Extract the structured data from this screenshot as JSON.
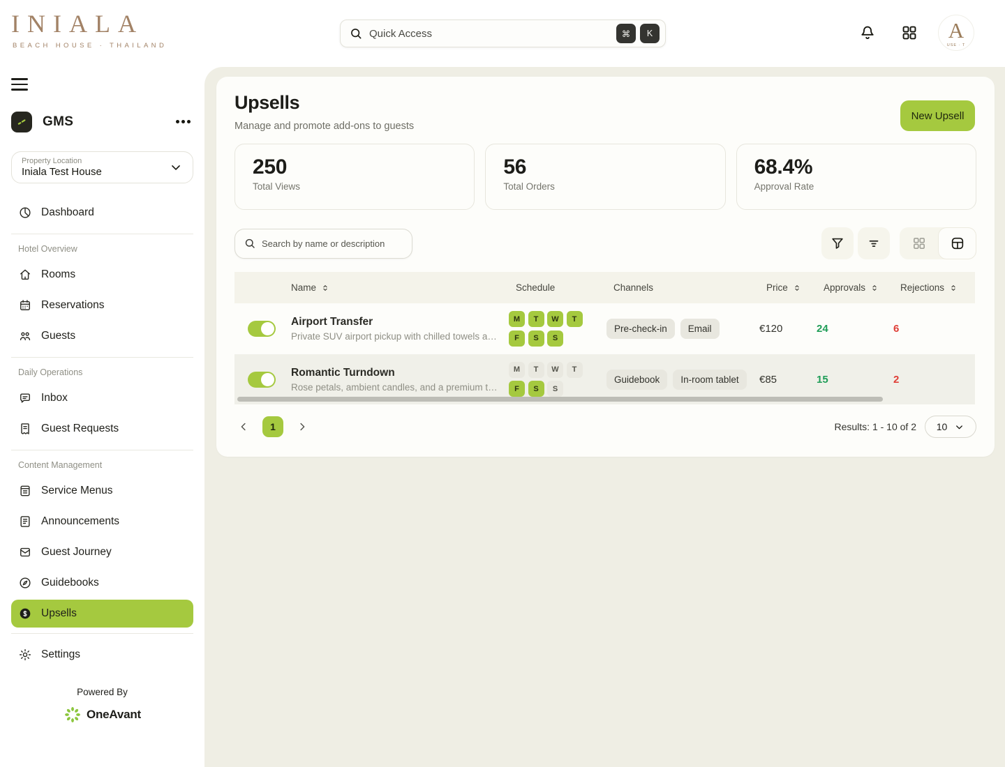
{
  "colors": {
    "accent_green": "#a5c93f",
    "logo_brown": "#a28266",
    "approvals_green": "#1f9d57",
    "rejections_red": "#df3e36",
    "panel_beige": "#efeee4"
  },
  "header": {
    "logo": {
      "title": "INIALA",
      "subtitle": "BEACH HOUSE · THAILAND"
    },
    "search": {
      "placeholder": "Quick Access",
      "shortcut_keys": [
        "⌘",
        "K"
      ]
    },
    "avatar": {
      "letter": "A",
      "subtext": "USE · T"
    }
  },
  "sidebar": {
    "workspace": {
      "name": "GMS"
    },
    "property_selector": {
      "label": "Property Location",
      "value": "Iniala Test House"
    },
    "sections": [
      {
        "label": "",
        "divider_after": true,
        "items": [
          {
            "label": "Dashboard",
            "icon": "dashboard-icon",
            "active": false
          }
        ]
      },
      {
        "label": "Hotel Overview",
        "divider_after": true,
        "items": [
          {
            "label": "Rooms",
            "icon": "rooms-icon",
            "active": false
          },
          {
            "label": "Reservations",
            "icon": "reservations-icon",
            "active": false
          },
          {
            "label": "Guests",
            "icon": "guests-icon",
            "active": false
          }
        ]
      },
      {
        "label": "Daily Operations",
        "divider_after": true,
        "items": [
          {
            "label": "Inbox",
            "icon": "inbox-icon",
            "active": false
          },
          {
            "label": "Guest Requests",
            "icon": "guest-requests-icon",
            "active": false
          }
        ]
      },
      {
        "label": "Content Management",
        "divider_after": true,
        "items": [
          {
            "label": "Service Menus",
            "icon": "service-menus-icon",
            "active": false
          },
          {
            "label": "Announcements",
            "icon": "announcements-icon",
            "active": false
          },
          {
            "label": "Guest Journey",
            "icon": "guest-journey-icon",
            "active": false
          },
          {
            "label": "Guidebooks",
            "icon": "guidebooks-icon",
            "active": false
          },
          {
            "label": "Upsells",
            "icon": "upsells-icon",
            "active": true
          }
        ]
      },
      {
        "label": "",
        "divider_after": false,
        "items": [
          {
            "label": "Settings",
            "icon": "settings-icon",
            "active": false
          }
        ]
      }
    ],
    "footer": {
      "powered_by": "Powered By",
      "brand": "OneAvant"
    }
  },
  "main": {
    "title": "Upsells",
    "subtitle": "Manage and promote add-ons to guests",
    "new_upsell_label": "New Upsell",
    "stats": [
      {
        "value": "250",
        "label": "Total Views"
      },
      {
        "value": "56",
        "label": "Total Orders"
      },
      {
        "value": "68.4%",
        "label": "Approval Rate"
      }
    ],
    "toolbar": {
      "search_placeholder": "Search by name or description"
    },
    "table": {
      "columns": [
        {
          "label": "Name",
          "sortable": true
        },
        {
          "label": "Schedule",
          "sortable": false
        },
        {
          "label": "Channels",
          "sortable": false
        },
        {
          "label": "Price",
          "sortable": true
        },
        {
          "label": "Approvals",
          "sortable": true
        },
        {
          "label": "Rejections",
          "sortable": true
        }
      ],
      "day_labels": [
        "M",
        "T",
        "W",
        "T",
        "F",
        "S",
        "S"
      ],
      "rows": [
        {
          "enabled": true,
          "name": "Airport Transfer",
          "description": "Private SUV airport pickup with chilled towels an…",
          "schedule": [
            true,
            true,
            true,
            true,
            true,
            true,
            true
          ],
          "channels": [
            "Pre-check-in",
            "Email"
          ],
          "price": "€120",
          "approvals": "24",
          "rejections": "6"
        },
        {
          "enabled": true,
          "name": "Romantic Turndown",
          "description": "Rose petals, ambient candles, and a premium tea …",
          "schedule": [
            false,
            false,
            false,
            false,
            true,
            true,
            false
          ],
          "channels": [
            "Guidebook",
            "In-room tablet"
          ],
          "price": "€85",
          "approvals": "15",
          "rejections": "2"
        }
      ]
    },
    "pagination": {
      "page": "1",
      "results_text": "Results: 1 - 10 of 2",
      "page_size": "10"
    }
  }
}
